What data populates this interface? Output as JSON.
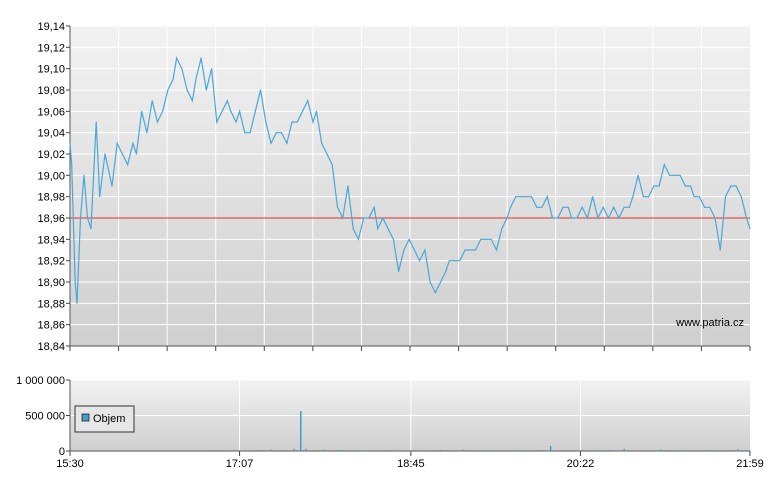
{
  "chart_data": [
    {
      "type": "line",
      "title": "",
      "xlabel": "",
      "ylabel": "",
      "ylim": [
        18.84,
        19.14
      ],
      "yticks": [
        "19,14",
        "19,12",
        "19,10",
        "19,08",
        "19,06",
        "19,04",
        "19,02",
        "19,00",
        "18,98",
        "18,96",
        "18,94",
        "18,92",
        "18,90",
        "18,88",
        "18,86",
        "18,84"
      ],
      "reference_line": 18.96,
      "watermark": "www.patria.cz",
      "grid": true,
      "series": [
        {
          "color": "#4aa8d8",
          "points": [
            [
              "15:30",
              19.03
            ],
            [
              "15:31",
              19.01
            ],
            [
              "15:33",
              18.9
            ],
            [
              "15:34",
              18.88
            ],
            [
              "15:36",
              18.96
            ],
            [
              "15:38",
              19.0
            ],
            [
              "15:40",
              18.96
            ],
            [
              "15:42",
              18.95
            ],
            [
              "15:45",
              19.05
            ],
            [
              "15:47",
              18.98
            ],
            [
              "15:50",
              19.02
            ],
            [
              "15:54",
              18.99
            ],
            [
              "15:57",
              19.03
            ],
            [
              "16:00",
              19.02
            ],
            [
              "16:03",
              19.01
            ],
            [
              "16:06",
              19.03
            ],
            [
              "16:08",
              19.02
            ],
            [
              "16:11",
              19.06
            ],
            [
              "16:14",
              19.04
            ],
            [
              "16:17",
              19.07
            ],
            [
              "16:20",
              19.05
            ],
            [
              "16:23",
              19.06
            ],
            [
              "16:26",
              19.08
            ],
            [
              "16:29",
              19.09
            ],
            [
              "16:31",
              19.11
            ],
            [
              "16:34",
              19.1
            ],
            [
              "16:37",
              19.08
            ],
            [
              "16:40",
              19.07
            ],
            [
              "16:42",
              19.09
            ],
            [
              "16:45",
              19.11
            ],
            [
              "16:48",
              19.08
            ],
            [
              "16:51",
              19.1
            ],
            [
              "16:54",
              19.05
            ],
            [
              "16:57",
              19.06
            ],
            [
              "17:00",
              19.07
            ],
            [
              "17:02",
              19.06
            ],
            [
              "17:05",
              19.05
            ],
            [
              "17:07",
              19.06
            ],
            [
              "17:10",
              19.04
            ],
            [
              "17:13",
              19.04
            ],
            [
              "17:16",
              19.06
            ],
            [
              "17:19",
              19.08
            ],
            [
              "17:22",
              19.05
            ],
            [
              "17:25",
              19.03
            ],
            [
              "17:28",
              19.04
            ],
            [
              "17:31",
              19.04
            ],
            [
              "17:34",
              19.03
            ],
            [
              "17:37",
              19.05
            ],
            [
              "17:40",
              19.05
            ],
            [
              "17:43",
              19.06
            ],
            [
              "17:46",
              19.07
            ],
            [
              "17:49",
              19.05
            ],
            [
              "17:51",
              19.06
            ],
            [
              "17:54",
              19.03
            ],
            [
              "17:57",
              19.02
            ],
            [
              "18:00",
              19.01
            ],
            [
              "18:03",
              18.97
            ],
            [
              "18:06",
              18.96
            ],
            [
              "18:09",
              18.99
            ],
            [
              "18:12",
              18.95
            ],
            [
              "18:15",
              18.94
            ],
            [
              "18:18",
              18.96
            ],
            [
              "18:21",
              18.96
            ],
            [
              "18:24",
              18.97
            ],
            [
              "18:26",
              18.95
            ],
            [
              "18:29",
              18.96
            ],
            [
              "18:32",
              18.95
            ],
            [
              "18:35",
              18.94
            ],
            [
              "18:38",
              18.91
            ],
            [
              "18:41",
              18.93
            ],
            [
              "18:44",
              18.94
            ],
            [
              "18:47",
              18.93
            ],
            [
              "18:50",
              18.92
            ],
            [
              "18:53",
              18.93
            ],
            [
              "18:56",
              18.9
            ],
            [
              "18:59",
              18.89
            ],
            [
              "19:02",
              18.9
            ],
            [
              "19:05",
              18.91
            ],
            [
              "19:07",
              18.92
            ],
            [
              "19:10",
              18.92
            ],
            [
              "19:13",
              18.92
            ],
            [
              "19:16",
              18.93
            ],
            [
              "19:19",
              18.93
            ],
            [
              "19:22",
              18.93
            ],
            [
              "19:25",
              18.94
            ],
            [
              "19:28",
              18.94
            ],
            [
              "19:31",
              18.94
            ],
            [
              "19:34",
              18.93
            ],
            [
              "19:37",
              18.95
            ],
            [
              "19:40",
              18.96
            ],
            [
              "19:42",
              18.97
            ],
            [
              "19:45",
              18.98
            ],
            [
              "19:48",
              18.98
            ],
            [
              "19:51",
              18.98
            ],
            [
              "19:54",
              18.98
            ],
            [
              "19:57",
              18.97
            ],
            [
              "20:00",
              18.97
            ],
            [
              "20:03",
              18.98
            ],
            [
              "20:06",
              18.96
            ],
            [
              "20:09",
              18.96
            ],
            [
              "20:12",
              18.97
            ],
            [
              "20:15",
              18.97
            ],
            [
              "20:17",
              18.96
            ],
            [
              "20:20",
              18.96
            ],
            [
              "20:23",
              18.97
            ],
            [
              "20:26",
              18.96
            ],
            [
              "20:29",
              18.98
            ],
            [
              "20:32",
              18.96
            ],
            [
              "20:35",
              18.97
            ],
            [
              "20:38",
              18.96
            ],
            [
              "20:41",
              18.97
            ],
            [
              "20:44",
              18.96
            ],
            [
              "20:47",
              18.97
            ],
            [
              "20:50",
              18.97
            ],
            [
              "20:52",
              18.98
            ],
            [
              "20:55",
              19.0
            ],
            [
              "20:58",
              18.98
            ],
            [
              "21:01",
              18.98
            ],
            [
              "21:04",
              18.99
            ],
            [
              "21:07",
              18.99
            ],
            [
              "21:10",
              19.01
            ],
            [
              "21:13",
              19.0
            ],
            [
              "21:16",
              19.0
            ],
            [
              "21:19",
              19.0
            ],
            [
              "21:22",
              18.99
            ],
            [
              "21:25",
              18.99
            ],
            [
              "21:27",
              18.98
            ],
            [
              "21:30",
              18.98
            ],
            [
              "21:33",
              18.97
            ],
            [
              "21:36",
              18.97
            ],
            [
              "21:39",
              18.96
            ],
            [
              "21:42",
              18.93
            ],
            [
              "21:45",
              18.98
            ],
            [
              "21:48",
              18.99
            ],
            [
              "21:51",
              18.99
            ],
            [
              "21:54",
              18.98
            ],
            [
              "21:57",
              18.96
            ],
            [
              "21:59",
              18.95
            ]
          ]
        }
      ]
    },
    {
      "type": "bar",
      "title": "",
      "xlabel": "",
      "ylabel": "",
      "ylim": [
        0,
        1000000
      ],
      "yticks": [
        "1 000 000",
        "500 000",
        "0"
      ],
      "xticks": [
        "15:30",
        "17:07",
        "18:45",
        "20:22",
        "21:59"
      ],
      "legend": "Objem",
      "legend_placement": "top-left",
      "grid": true,
      "series": [
        {
          "name": "Objem",
          "color": "#3f9fcc",
          "points": [
            [
              "16:54",
              12000
            ],
            [
              "17:18",
              15000
            ],
            [
              "17:25",
              20000
            ],
            [
              "17:38",
              30000
            ],
            [
              "17:42",
              560000
            ],
            [
              "17:45",
              30000
            ],
            [
              "17:55",
              20000
            ],
            [
              "18:05",
              15000
            ],
            [
              "18:18",
              10000
            ],
            [
              "18:35",
              12000
            ],
            [
              "18:50",
              10000
            ],
            [
              "19:02",
              15000
            ],
            [
              "19:15",
              20000
            ],
            [
              "19:30",
              12000
            ],
            [
              "19:45",
              10000
            ],
            [
              "19:58",
              15000
            ],
            [
              "20:05",
              70000
            ],
            [
              "20:15",
              12000
            ],
            [
              "20:30",
              10000
            ],
            [
              "20:38",
              15000
            ],
            [
              "20:47",
              30000
            ],
            [
              "20:52",
              10000
            ],
            [
              "21:08",
              20000
            ],
            [
              "21:20",
              10000
            ],
            [
              "21:35",
              12000
            ],
            [
              "21:52",
              25000
            ],
            [
              "21:57",
              15000
            ]
          ]
        }
      ]
    }
  ]
}
